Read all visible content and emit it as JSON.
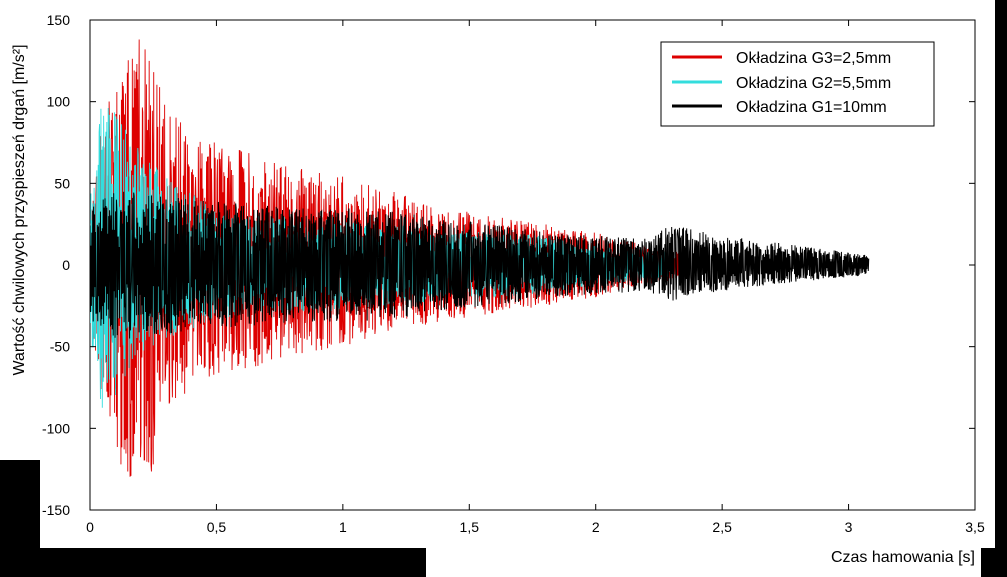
{
  "chart_data": {
    "type": "line",
    "title": "",
    "xlabel": "Czas hamowania [s]",
    "ylabel": "Wartość chwilowych przyspieszeń drgań [m/s²]",
    "xlim": [
      0,
      3.5
    ],
    "ylim": [
      -150,
      150
    ],
    "x_ticks": [
      0,
      0.5,
      1,
      1.5,
      2,
      2.5,
      3,
      3.5
    ],
    "x_tick_labels": [
      "0",
      "0,5",
      "1",
      "1,5",
      "2",
      "2,5",
      "3",
      "3,5"
    ],
    "y_ticks": [
      150,
      100,
      50,
      0,
      -50,
      -100,
      -150
    ],
    "y_tick_labels": [
      "150",
      "100",
      "50",
      "0",
      "-50",
      "-100",
      "-150"
    ],
    "grid": false,
    "legend_position": "top-right",
    "series": [
      {
        "name": "Okładzina G3=2,5mm",
        "color": "#dd0000",
        "x_range": [
          0,
          2.35
        ],
        "envelope": {
          "x": [
            0,
            0.05,
            0.1,
            0.15,
            0.2,
            0.25,
            0.3,
            0.4,
            0.5,
            0.6,
            0.8,
            1.0,
            1.2,
            1.4,
            1.6,
            1.8,
            2.0,
            2.2,
            2.35
          ],
          "max": [
            30,
            90,
            110,
            125,
            145,
            120,
            100,
            80,
            75,
            70,
            60,
            55,
            45,
            35,
            30,
            25,
            20,
            12,
            8
          ],
          "min": [
            -30,
            -90,
            -110,
            -137,
            -120,
            -130,
            -90,
            -75,
            -70,
            -65,
            -55,
            -50,
            -40,
            -35,
            -30,
            -25,
            -20,
            -12,
            -8
          ]
        }
      },
      {
        "name": "Okładzina G2=5,5mm",
        "color": "#33dddd",
        "x_range": [
          0,
          2.3
        ],
        "envelope": {
          "x": [
            0,
            0.05,
            0.1,
            0.15,
            0.2,
            0.3,
            0.4,
            0.5,
            0.6,
            0.8,
            1.0,
            1.2,
            1.4,
            1.6,
            1.8,
            2.0,
            2.3
          ],
          "max": [
            40,
            112,
            95,
            80,
            70,
            55,
            45,
            35,
            30,
            30,
            28,
            25,
            22,
            20,
            18,
            12,
            8
          ],
          "min": [
            -40,
            -100,
            -80,
            -65,
            -55,
            -45,
            -40,
            -35,
            -30,
            -30,
            -28,
            -25,
            -22,
            -20,
            -18,
            -12,
            -8
          ]
        }
      },
      {
        "name": "Okładzina G1=10mm",
        "color": "#000000",
        "x_range": [
          0,
          3.08
        ],
        "envelope": {
          "x": [
            0,
            0.1,
            0.2,
            0.4,
            0.6,
            0.8,
            1.0,
            1.2,
            1.4,
            1.6,
            1.8,
            2.0,
            2.2,
            2.3,
            2.5,
            2.7,
            2.9,
            3.08
          ],
          "max": [
            35,
            45,
            45,
            40,
            38,
            35,
            35,
            33,
            28,
            25,
            20,
            18,
            16,
            25,
            18,
            14,
            10,
            6
          ],
          "min": [
            -35,
            -45,
            -45,
            -40,
            -38,
            -35,
            -35,
            -33,
            -28,
            -25,
            -20,
            -18,
            -16,
            -22,
            -16,
            -12,
            -9,
            -6
          ]
        }
      }
    ]
  }
}
